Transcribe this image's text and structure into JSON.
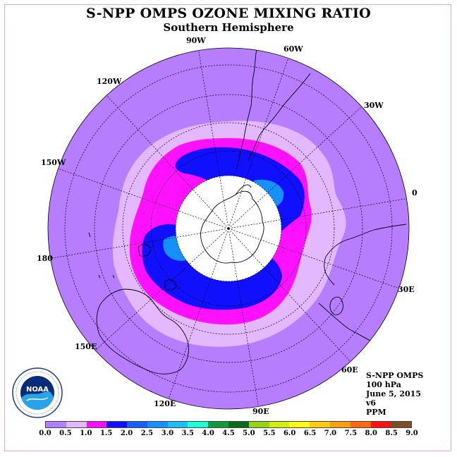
{
  "header": {
    "title": "S-NPP OMPS OZONE MIXING RATIO",
    "subtitle": "Southern Hemisphere"
  },
  "map": {
    "projection": "south polar stereographic",
    "longitude_labels": [
      "0",
      "30E",
      "60E",
      "90E",
      "120E",
      "150E",
      "180",
      "150W",
      "120W",
      "90W",
      "60W",
      "30W"
    ],
    "background_level_color": "#b77dff",
    "polar_night_color": "#ffffff"
  },
  "info": {
    "line1": "S-NPP OMPS",
    "line2": "100 hPa",
    "line3": "June 5, 2015",
    "line4": "v6",
    "line5": "PPM"
  },
  "colorbar": {
    "colors": [
      "#b77dff",
      "#e3b8ff",
      "#ff10ff",
      "#1010ff",
      "#1560ff",
      "#1590ff",
      "#17c0ff",
      "#1fffd8",
      "#149a3c",
      "#0a6a20",
      "#94d414",
      "#d2f010",
      "#ffff1a",
      "#ffcc10",
      "#ffa010",
      "#ff6a10",
      "#ff1010",
      "#7a4f2a"
    ],
    "ticks": [
      "0.0",
      "0.5",
      "1.0",
      "1.5",
      "2.0",
      "2.5",
      "3.0",
      "3.5",
      "4.0",
      "4.5",
      "5.0",
      "5.5",
      "6.0",
      "6.5",
      "7.0",
      "7.5",
      "8.0",
      "8.5",
      "9.0"
    ]
  },
  "logo": {
    "text": "NOAA",
    "ring_text": "NATIONAL OCEANIC AND ATMOSPHERIC ADMINISTRATION · U.S. DEPARTMENT OF COMMERCE"
  }
}
